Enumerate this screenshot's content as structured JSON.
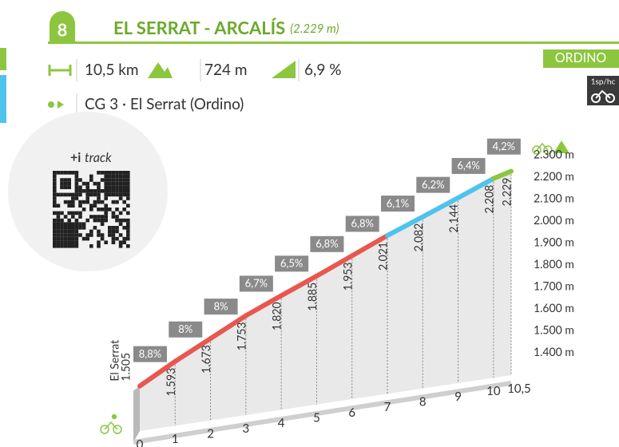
{
  "chart_data": {
    "type": "area",
    "number": "8",
    "title": "EL SERRAT - ARCALÍS",
    "subtitle": "(2.229 m)",
    "distance": "10,5 km",
    "elevation_gain": "724 m",
    "average_gradient": "6,9 %",
    "region": "ORDINO",
    "category": "1sp/hc",
    "start": "CG 3 · El Serrat (Ordino)",
    "track_prefix": "+i",
    "track": "track",
    "start_name": "El Serrat",
    "x": [
      0,
      1,
      2,
      3,
      4,
      5,
      6,
      7,
      8,
      9,
      10,
      10.5
    ],
    "values": [
      1505,
      1593,
      1673,
      1753,
      1820,
      1885,
      1953,
      2021,
      2082,
      2144,
      2208,
      2229
    ],
    "value_labels": [
      "1.505",
      "1.593",
      "1.673",
      "1.753",
      "1.820",
      "1.885",
      "1.953",
      "2.021",
      "2.082",
      "2.144",
      "2.208",
      "2.229"
    ],
    "gradients": [
      8.8,
      8,
      8,
      6.7,
      6.5,
      6.8,
      6.8,
      6.1,
      6.2,
      6.4,
      4.2
    ],
    "gradient_labels": [
      "8,8%",
      "8%",
      "8%",
      "6,7%",
      "6,5%",
      "6,8%",
      "6,8%",
      "6,1%",
      "6,2%",
      "6,4%",
      "4,2%"
    ],
    "colors": [
      "#e8574f",
      "#e8574f",
      "#e8574f",
      "#e8574f",
      "#e8574f",
      "#e8574f",
      "#e8574f",
      "#4ec3ec",
      "#4ec3ec",
      "#4ec3ec",
      "#8cc63f"
    ],
    "xlim": [
      0,
      10.5
    ],
    "xticks": [
      0,
      1,
      2,
      3,
      4,
      5,
      6,
      7,
      8,
      9,
      10,
      {
        "value": 10.5,
        "label": "10,5"
      }
    ],
    "ylim": [
      1300,
      2300
    ],
    "yticks": [
      {
        "value": 1400,
        "label": "1.400 m"
      },
      {
        "value": 1500,
        "label": "1.500 m"
      },
      {
        "value": 1600,
        "label": "1.600 m"
      },
      {
        "value": 1700,
        "label": "1.700 m"
      },
      {
        "value": 1800,
        "label": "1.800 m"
      },
      {
        "value": 1900,
        "label": "1.900 m"
      },
      {
        "value": 2000,
        "label": "2.000 m"
      },
      {
        "value": 2100,
        "label": "2.100 m"
      },
      {
        "value": 2200,
        "label": "2.200 m"
      },
      {
        "value": 2300,
        "label": "2.300 m"
      }
    ]
  }
}
